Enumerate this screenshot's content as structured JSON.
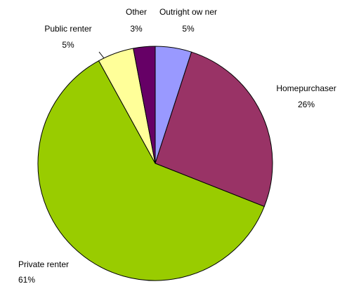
{
  "chart_data": {
    "type": "pie",
    "categories": [
      "Outright ow ner",
      "Homepurchaser",
      "Private renter",
      "Public renter",
      "Other"
    ],
    "values": [
      5,
      26,
      61,
      5,
      3
    ],
    "value_labels": [
      "5%",
      "26%",
      "61%",
      "5%",
      "3%"
    ],
    "colors": [
      "#9999ff",
      "#993366",
      "#99cc00",
      "#ffff99",
      "#660066"
    ]
  }
}
